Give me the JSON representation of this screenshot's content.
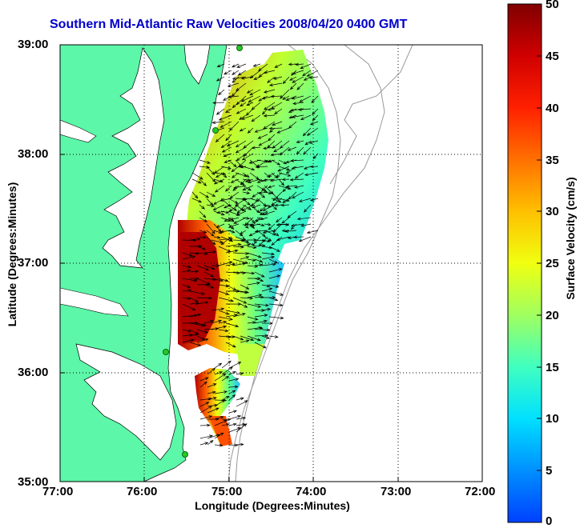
{
  "title": "Southern Mid-Atlantic Raw Velocities 2008/04/20 0400 GMT",
  "x_axis": {
    "title": "Longitude (Degrees:Minutes)",
    "ticks": [
      "77:00",
      "76:00",
      "75:00",
      "74:00",
      "73:00",
      "72:00"
    ]
  },
  "y_axis": {
    "title": "Latitude (Degrees:Minutes)",
    "ticks": [
      "39:00",
      "38:00",
      "37:00",
      "36:00",
      "35:00"
    ]
  },
  "colorbar": {
    "title": "Surface Velocity (cm/s)",
    "ticks": [
      "50",
      "45",
      "40",
      "35",
      "30",
      "25",
      "20",
      "15",
      "10",
      "5",
      "0"
    ],
    "min": 0,
    "max": 50
  },
  "colors": {
    "land": "#5cf7a8",
    "title": "#0000cc",
    "station": "#22cc22"
  },
  "icons": [
    "station-marker-icon",
    "velocity-arrow-icon"
  ]
}
